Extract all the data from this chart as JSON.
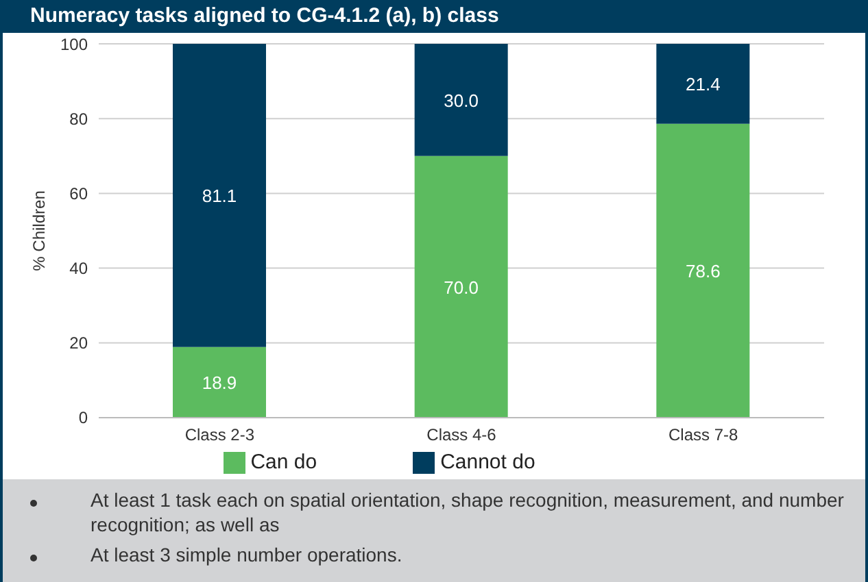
{
  "chart_data": {
    "type": "bar",
    "title": "Numeracy tasks aligned to CG-4.1.2 (a), b) class",
    "ylabel": "% Children",
    "categories": [
      "Class 2-3",
      "Class 4-6",
      "Class 7-8"
    ],
    "stacked": true,
    "series": [
      {
        "name": "Can do",
        "color": "#5cbb5f",
        "values": [
          18.9,
          70.0,
          78.6
        ],
        "value_labels": [
          "18.9",
          "70.0",
          "78.6"
        ]
      },
      {
        "name": "Cannot do",
        "color": "#003d5e",
        "values": [
          81.1,
          30.0,
          21.4
        ],
        "value_labels": [
          "81.1",
          "30.0",
          "21.4"
        ]
      }
    ],
    "ylim": [
      0,
      100
    ],
    "yticks": [
      0,
      20,
      40,
      60,
      80,
      100
    ],
    "grid": "y",
    "legend": "bottom",
    "annotations": [
      "At least 1 task each on spatial orientation, shape recognition, measurement, and number recognition; as well as",
      "At least 3 simple number operations."
    ]
  }
}
